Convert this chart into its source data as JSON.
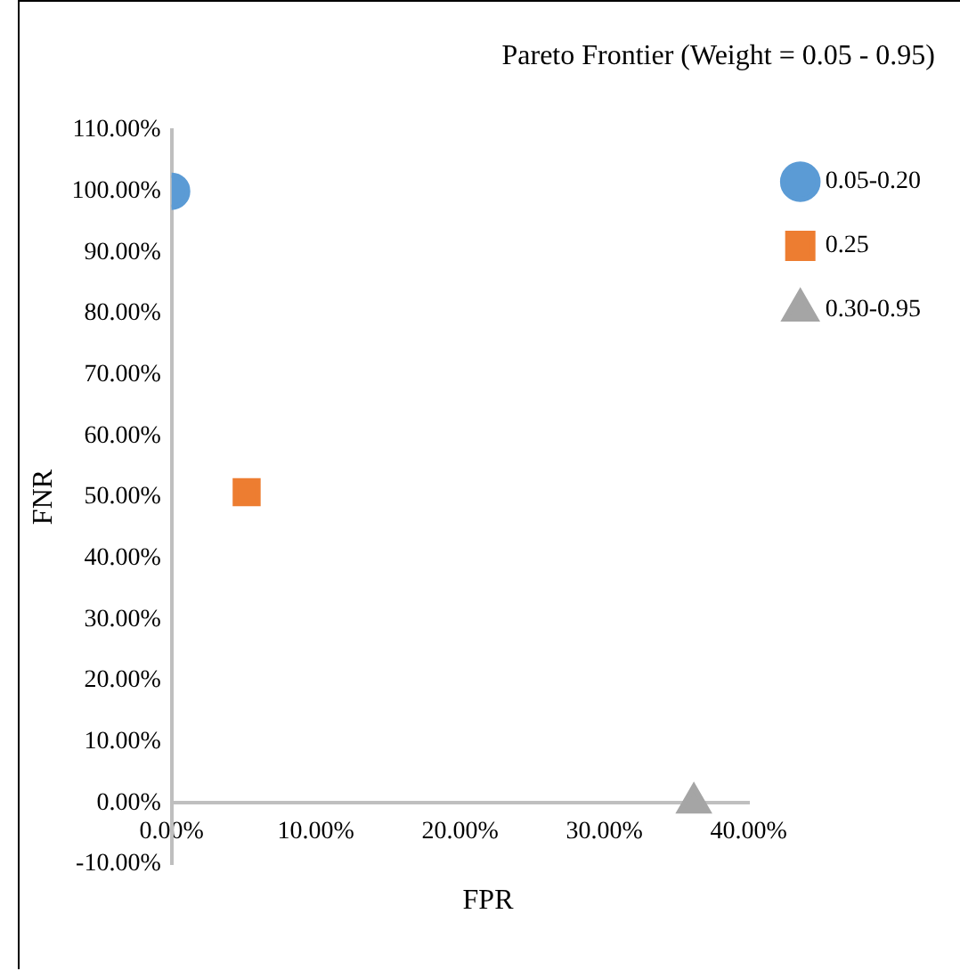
{
  "chart_data": {
    "type": "scatter",
    "title": "Pareto Frontier (Weight = 0.05 - 0.95)",
    "xlabel": "FPR",
    "ylabel": "FNR",
    "xlim": [
      0,
      40
    ],
    "ylim": [
      -10,
      110
    ],
    "xticks": [
      {
        "value": 0,
        "label": "0.00%"
      },
      {
        "value": 10,
        "label": "10.00%"
      },
      {
        "value": 20,
        "label": "20.00%"
      },
      {
        "value": 30,
        "label": "30.00%"
      },
      {
        "value": 40,
        "label": "40.00%"
      }
    ],
    "yticks": [
      {
        "value": -10,
        "label": "-10.00%"
      },
      {
        "value": 0,
        "label": "0.00%"
      },
      {
        "value": 10,
        "label": "10.00%"
      },
      {
        "value": 20,
        "label": "20.00%"
      },
      {
        "value": 30,
        "label": "30.00%"
      },
      {
        "value": 40,
        "label": "40.00%"
      },
      {
        "value": 50,
        "label": "50.00%"
      },
      {
        "value": 60,
        "label": "60.00%"
      },
      {
        "value": 70,
        "label": "70.00%"
      },
      {
        "value": 80,
        "label": "80.00%"
      },
      {
        "value": 90,
        "label": "90.00%"
      },
      {
        "value": 100,
        "label": "100.00%"
      },
      {
        "value": 110,
        "label": "110.00%"
      }
    ],
    "grid": false,
    "legend": "right",
    "series": [
      {
        "name": "0.05-0.20",
        "color": "#5b9bd5",
        "marker": "circle",
        "x": [
          0
        ],
        "values": [
          100
        ]
      },
      {
        "name": "0.25",
        "color": "#ed7d31",
        "marker": "square",
        "x": [
          5.2
        ],
        "values": [
          50.8
        ]
      },
      {
        "name": "0.30-0.95",
        "color": "#a5a5a5",
        "marker": "triangle",
        "x": [
          36.2
        ],
        "values": [
          0
        ]
      }
    ]
  }
}
